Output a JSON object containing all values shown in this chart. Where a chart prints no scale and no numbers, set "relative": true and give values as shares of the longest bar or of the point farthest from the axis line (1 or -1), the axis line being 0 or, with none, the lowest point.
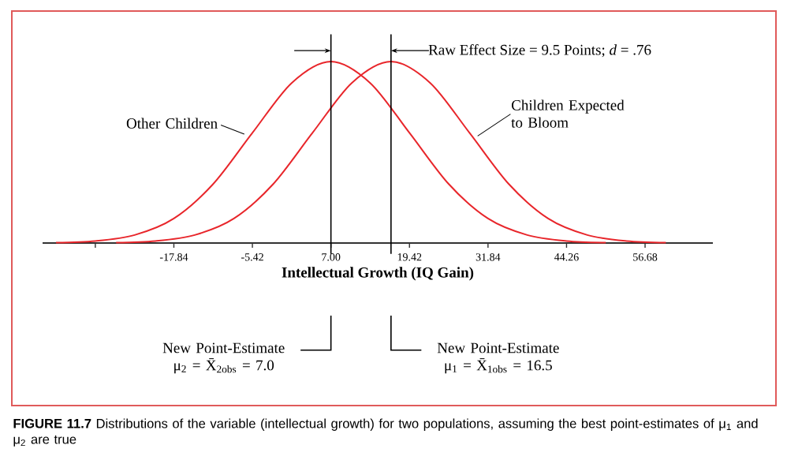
{
  "chart_data": {
    "type": "line",
    "relative": true,
    "marker": "none",
    "line_style": "solid",
    "xlabel": "Intellectual Growth (IQ Gain)",
    "xlim": [
      -38.6,
      67.4
    ],
    "xticks": [
      {
        "value": -30.26,
        "label": null
      },
      -17.84,
      -5.42,
      {
        "value": 7.0,
        "label": "7.00"
      },
      19.42,
      31.84,
      44.26,
      56.68
    ],
    "series": [
      {
        "name": "Other Children",
        "color": "#e8262b",
        "x": [
          -36.47,
          -30.26,
          -24.05,
          -17.84,
          -11.63,
          -5.42,
          0.79,
          7.0,
          13.21,
          19.42,
          25.63,
          31.84,
          38.05,
          44.26,
          50.47
        ],
        "values": [
          0.002,
          0.011,
          0.044,
          0.135,
          0.325,
          0.607,
          0.882,
          1,
          0.882,
          0.607,
          0.325,
          0.135,
          0.044,
          0.011,
          0.002
        ]
      },
      {
        "name": "Children Expected to Bloom",
        "color": "#e8262b",
        "x": [
          -26.97,
          -20.76,
          -14.55,
          -8.34,
          -2.13,
          4.08,
          10.29,
          16.5,
          22.71,
          28.92,
          35.13,
          41.34,
          47.55,
          53.76,
          59.97
        ],
        "values": [
          0.002,
          0.011,
          0.044,
          0.135,
          0.325,
          0.607,
          0.882,
          1,
          0.882,
          0.607,
          0.325,
          0.135,
          0.044,
          0.011,
          0.002
        ]
      }
    ],
    "ref_lines": [
      {
        "axis": "x",
        "value": 7.0,
        "color": "#000000"
      },
      {
        "axis": "x",
        "value": 16.5,
        "color": "#000000"
      }
    ],
    "annotations": [
      "Raw Effect Size = 9.5 Points; *d* = .76",
      "New Point-Estimate μ$_{2}$ = X̄$_{2obs}$ = 7.0",
      "New Point-Estimate μ$_{1}$ = X̄$_{1obs}$ = 16.5",
      "**FIGURE 11.7**  Distributions of the variable (intellectual growth) for two populations, assuming the best point-estimates of μ$_{1}$ and μ$_{2}$ are true"
    ]
  }
}
